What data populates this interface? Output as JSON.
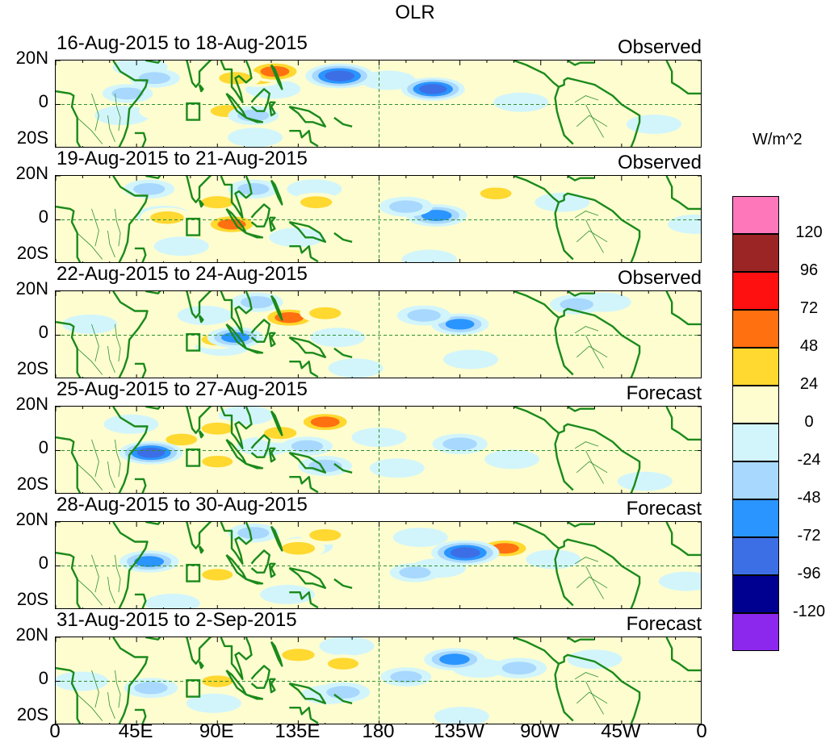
{
  "chart_data": {
    "type": "heatmap",
    "title": "OLR",
    "variable": "OLR",
    "units": "W/m^2",
    "x_tick_labels": [
      "0",
      "45E",
      "90E",
      "135E",
      "180",
      "135W",
      "90W",
      "45W",
      "0"
    ],
    "y_tick_labels": [
      "20N",
      "0",
      "20S"
    ],
    "lon_range": [
      0,
      360
    ],
    "lat_range": [
      -20,
      20
    ],
    "legend": {
      "levels": [
        "120",
        "96",
        "72",
        "48",
        "24",
        "0",
        "-24",
        "-48",
        "-72",
        "-96",
        "-120"
      ],
      "colors": [
        "#ff77bb",
        "#9b2424",
        "#ff1010",
        "#ff7010",
        "#ffd830",
        "#fdfdd0",
        "#d2f5fb",
        "#a8d8fd",
        "#2a95ff",
        "#3c6fe6",
        "#000090",
        "#8c28ee"
      ]
    },
    "panels": [
      {
        "date_range": "16-Aug-2015 to 18-Aug-2015",
        "kind": "Observed",
        "anomalies": [
          {
            "lon": 112,
            "lat": 13,
            "value": 60
          },
          {
            "lon": 122,
            "lat": 15,
            "value": 55
          },
          {
            "lon": 100,
            "lat": 12,
            "value": 35
          },
          {
            "lon": 95,
            "lat": -3,
            "value": 30
          },
          {
            "lon": 60,
            "lat": -3,
            "value": 24
          },
          {
            "lon": 158,
            "lat": 13,
            "value": -90
          },
          {
            "lon": 210,
            "lat": 7,
            "value": -75
          },
          {
            "lon": 55,
            "lat": 12,
            "value": -30
          },
          {
            "lon": 40,
            "lat": 5,
            "value": -30
          },
          {
            "lon": 110,
            "lat": -5,
            "value": -30
          }
        ]
      },
      {
        "date_range": "19-Aug-2015 to 21-Aug-2015",
        "kind": "Observed",
        "anomalies": [
          {
            "lon": 98,
            "lat": -2,
            "value": 50
          },
          {
            "lon": 90,
            "lat": 8,
            "value": 35
          },
          {
            "lon": 145,
            "lat": 8,
            "value": 30
          },
          {
            "lon": 62,
            "lat": 1,
            "value": 40
          },
          {
            "lon": 212,
            "lat": 2,
            "value": -65
          },
          {
            "lon": 195,
            "lat": 6,
            "value": -40
          },
          {
            "lon": 110,
            "lat": 14,
            "value": -30
          },
          {
            "lon": 52,
            "lat": 14,
            "value": -30
          },
          {
            "lon": 245,
            "lat": 12,
            "value": 28
          }
        ]
      },
      {
        "date_range": "22-Aug-2015 to 24-Aug-2015",
        "kind": "Observed",
        "anomalies": [
          {
            "lon": 130,
            "lat": 8,
            "value": 55
          },
          {
            "lon": 150,
            "lat": 10,
            "value": 30
          },
          {
            "lon": 90,
            "lat": -2,
            "value": 30
          },
          {
            "lon": 100,
            "lat": -1,
            "value": -50
          },
          {
            "lon": 112,
            "lat": 15,
            "value": -35
          },
          {
            "lon": 225,
            "lat": 5,
            "value": -55
          },
          {
            "lon": 205,
            "lat": 9,
            "value": -40
          },
          {
            "lon": 290,
            "lat": 14,
            "value": -40
          },
          {
            "lon": 300,
            "lat": -3,
            "value": 24
          }
        ]
      },
      {
        "date_range": "25-Aug-2015 to 27-Aug-2015",
        "kind": "Forecast",
        "anomalies": [
          {
            "lon": 150,
            "lat": 13,
            "value": 55
          },
          {
            "lon": 125,
            "lat": 8,
            "value": 35
          },
          {
            "lon": 70,
            "lat": 5,
            "value": 28
          },
          {
            "lon": 90,
            "lat": 10,
            "value": 30
          },
          {
            "lon": 53,
            "lat": -1,
            "value": -75
          },
          {
            "lon": 150,
            "lat": -7,
            "value": -40
          },
          {
            "lon": 225,
            "lat": 3,
            "value": -45
          },
          {
            "lon": 140,
            "lat": 2,
            "value": -30
          },
          {
            "lon": 90,
            "lat": -5,
            "value": 25
          }
        ]
      },
      {
        "date_range": "28-Aug-2015 to 30-Aug-2015",
        "kind": "Forecast",
        "anomalies": [
          {
            "lon": 135,
            "lat": 8,
            "value": 40
          },
          {
            "lon": 150,
            "lat": 14,
            "value": 30
          },
          {
            "lon": 250,
            "lat": 8,
            "value": 50
          },
          {
            "lon": 90,
            "lat": -4,
            "value": 25
          },
          {
            "lon": 228,
            "lat": 6,
            "value": -90
          },
          {
            "lon": 52,
            "lat": 2,
            "value": -60
          },
          {
            "lon": 200,
            "lat": -3,
            "value": -30
          },
          {
            "lon": 110,
            "lat": 15,
            "value": -30
          }
        ]
      },
      {
        "date_range": "31-Aug-2015 to 2-Sep-2015",
        "kind": "Forecast",
        "anomalies": [
          {
            "lon": 135,
            "lat": 12,
            "value": 35
          },
          {
            "lon": 160,
            "lat": 8,
            "value": 25
          },
          {
            "lon": 90,
            "lat": 0,
            "value": 25
          },
          {
            "lon": 222,
            "lat": 10,
            "value": -65
          },
          {
            "lon": 160,
            "lat": -5,
            "value": -40
          },
          {
            "lon": 258,
            "lat": 6,
            "value": -45
          },
          {
            "lon": 53,
            "lat": -3,
            "value": -40
          },
          {
            "lon": 195,
            "lat": 2,
            "value": -30
          }
        ]
      }
    ]
  }
}
